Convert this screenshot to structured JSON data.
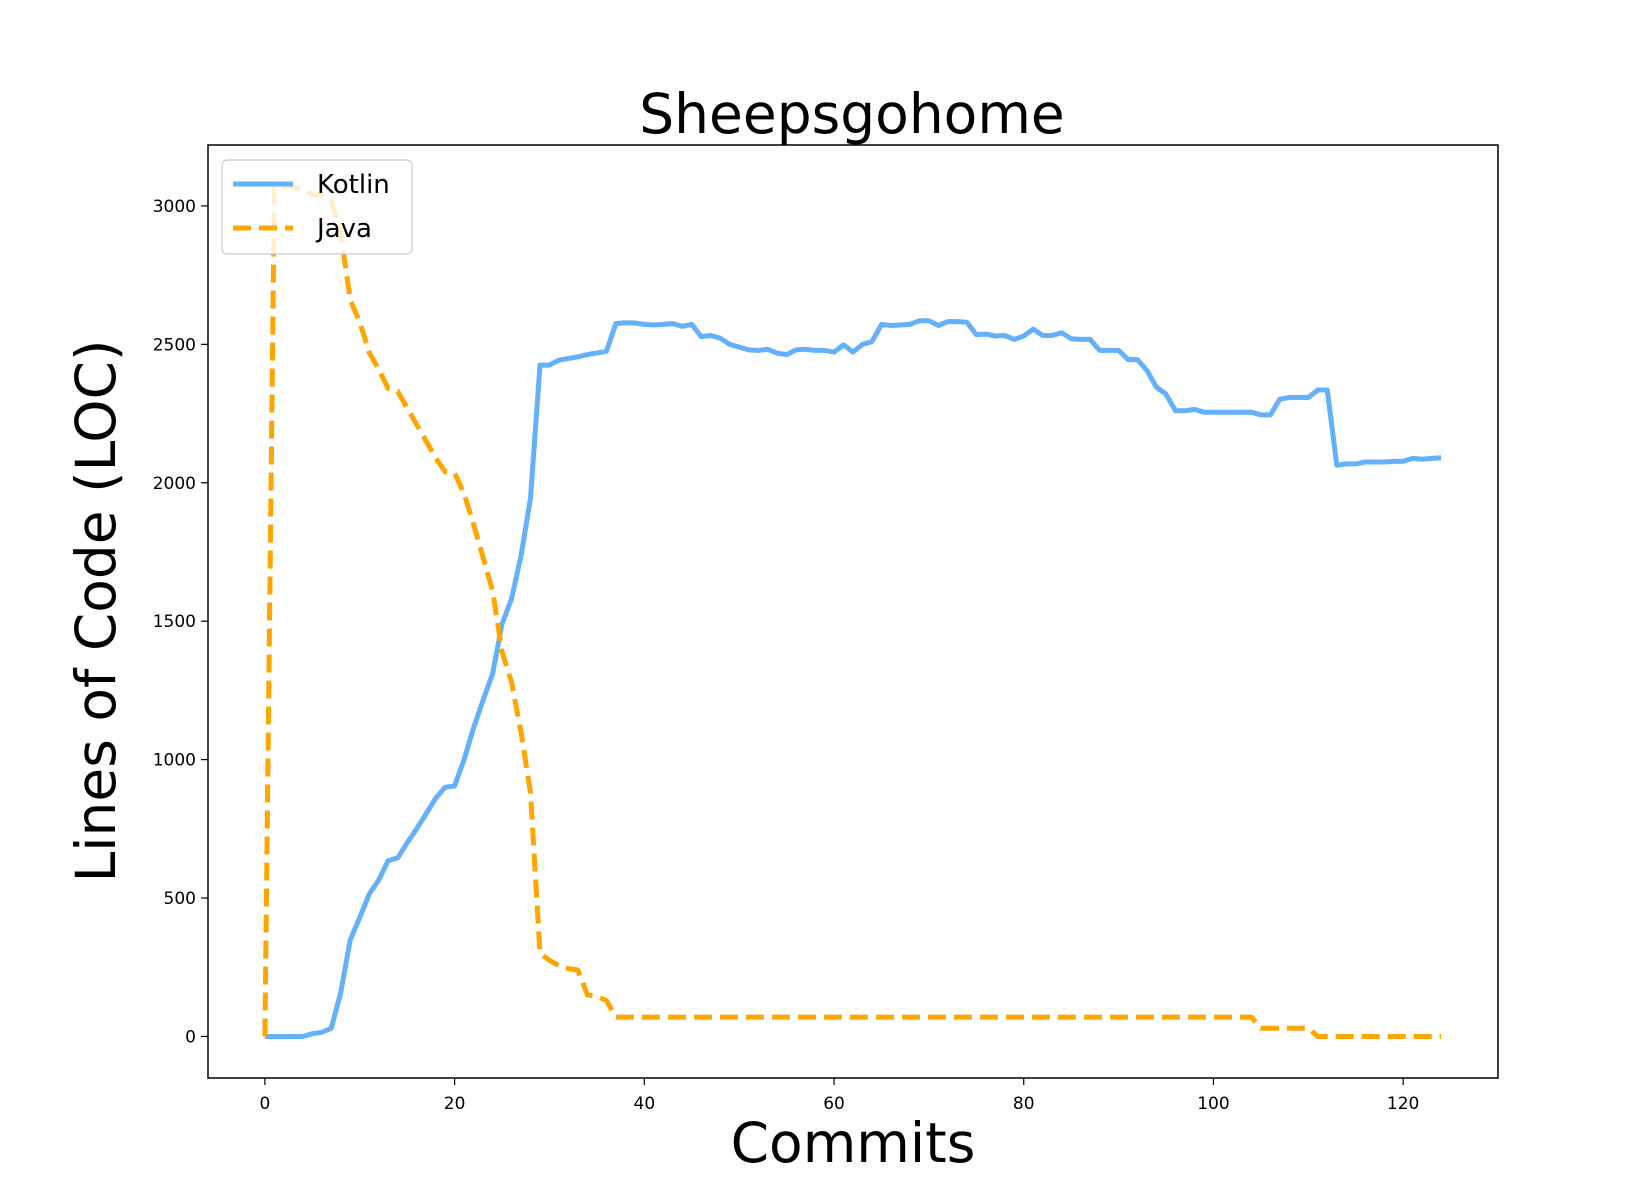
{
  "chart_data": {
    "type": "line",
    "title": "Sheepsgohome",
    "xlabel": "Commits",
    "ylabel": "Lines of Code (LOC)",
    "xlim": [
      -6,
      130
    ],
    "ylim": [
      -150,
      3220
    ],
    "xticks": [
      0,
      20,
      40,
      60,
      80,
      100,
      120
    ],
    "yticks": [
      0,
      500,
      1000,
      1500,
      2000,
      2500,
      3000
    ],
    "legend": "top-left",
    "grid": false,
    "series": [
      {
        "name": "Kotlin",
        "color": "#64b0f9",
        "style": "solid",
        "points": [
          [
            0,
            0
          ],
          [
            4,
            0
          ],
          [
            5,
            10
          ],
          [
            6,
            15
          ],
          [
            7,
            30
          ],
          [
            8,
            160
          ],
          [
            9,
            350
          ],
          [
            10,
            430
          ],
          [
            11,
            515
          ],
          [
            12,
            565
          ],
          [
            13,
            635
          ],
          [
            14,
            645
          ],
          [
            15,
            700
          ],
          [
            16,
            750
          ],
          [
            17,
            805
          ],
          [
            18,
            860
          ],
          [
            19,
            900
          ],
          [
            20,
            905
          ],
          [
            21,
            1000
          ],
          [
            22,
            1115
          ],
          [
            23,
            1215
          ],
          [
            24,
            1310
          ],
          [
            25,
            1490
          ],
          [
            26,
            1580
          ],
          [
            27,
            1735
          ],
          [
            28,
            1945
          ],
          [
            29,
            2425
          ],
          [
            30,
            2425
          ],
          [
            31,
            2443
          ],
          [
            33,
            2455
          ],
          [
            34,
            2463
          ],
          [
            36,
            2475
          ],
          [
            37,
            2575
          ],
          [
            38,
            2578
          ],
          [
            39,
            2577
          ],
          [
            40,
            2572
          ],
          [
            41,
            2570
          ],
          [
            42,
            2572
          ],
          [
            43,
            2575
          ],
          [
            44,
            2565
          ],
          [
            45,
            2572
          ],
          [
            46,
            2528
          ],
          [
            47,
            2532
          ],
          [
            48,
            2522
          ],
          [
            49,
            2500
          ],
          [
            50,
            2490
          ],
          [
            51,
            2480
          ],
          [
            52,
            2478
          ],
          [
            53,
            2482
          ],
          [
            54,
            2468
          ],
          [
            55,
            2463
          ],
          [
            56,
            2480
          ],
          [
            57,
            2482
          ],
          [
            58,
            2478
          ],
          [
            59,
            2478
          ],
          [
            60,
            2472
          ],
          [
            61,
            2498
          ],
          [
            62,
            2472
          ],
          [
            63,
            2500
          ],
          [
            64,
            2510
          ],
          [
            65,
            2572
          ],
          [
            66,
            2568
          ],
          [
            67,
            2570
          ],
          [
            68,
            2572
          ],
          [
            69,
            2585
          ],
          [
            70,
            2585
          ],
          [
            71,
            2568
          ],
          [
            72,
            2582
          ],
          [
            73,
            2582
          ],
          [
            74,
            2580
          ],
          [
            75,
            2535
          ],
          [
            76,
            2537
          ],
          [
            77,
            2530
          ],
          [
            78,
            2532
          ],
          [
            79,
            2518
          ],
          [
            80,
            2530
          ],
          [
            81,
            2555
          ],
          [
            82,
            2532
          ],
          [
            83,
            2532
          ],
          [
            84,
            2542
          ],
          [
            85,
            2520
          ],
          [
            86,
            2518
          ],
          [
            87,
            2518
          ],
          [
            88,
            2478
          ],
          [
            89,
            2478
          ],
          [
            90,
            2478
          ],
          [
            91,
            2445
          ],
          [
            92,
            2445
          ],
          [
            93,
            2405
          ],
          [
            94,
            2345
          ],
          [
            95,
            2320
          ],
          [
            96,
            2260
          ],
          [
            97,
            2260
          ],
          [
            98,
            2265
          ],
          [
            99,
            2255
          ],
          [
            100,
            2255
          ],
          [
            101,
            2255
          ],
          [
            102,
            2255
          ],
          [
            103,
            2255
          ],
          [
            104,
            2255
          ],
          [
            105,
            2245
          ],
          [
            106,
            2245
          ],
          [
            107,
            2302
          ],
          [
            108,
            2308
          ],
          [
            109,
            2308
          ],
          [
            110,
            2308
          ],
          [
            111,
            2335
          ],
          [
            112,
            2335
          ],
          [
            113,
            2063
          ],
          [
            114,
            2068
          ],
          [
            115,
            2068
          ],
          [
            116,
            2075
          ],
          [
            117,
            2075
          ],
          [
            118,
            2075
          ],
          [
            119,
            2077
          ],
          [
            120,
            2078
          ],
          [
            121,
            2088
          ],
          [
            122,
            2085
          ],
          [
            123,
            2088
          ],
          [
            124,
            2090
          ]
        ]
      },
      {
        "name": "Java",
        "color": "#ffa500",
        "style": "dashed",
        "points": [
          [
            0,
            0
          ],
          [
            1,
            3070
          ],
          [
            2,
            3070
          ],
          [
            3,
            3070
          ],
          [
            4,
            3060
          ],
          [
            5,
            3040
          ],
          [
            6,
            3040
          ],
          [
            7,
            3020
          ],
          [
            8,
            2900
          ],
          [
            9,
            2660
          ],
          [
            10,
            2580
          ],
          [
            11,
            2470
          ],
          [
            12,
            2410
          ],
          [
            13,
            2340
          ],
          [
            14,
            2330
          ],
          [
            15,
            2270
          ],
          [
            16,
            2210
          ],
          [
            17,
            2150
          ],
          [
            18,
            2090
          ],
          [
            19,
            2040
          ],
          [
            20,
            2035
          ],
          [
            21,
            1960
          ],
          [
            22,
            1850
          ],
          [
            23,
            1730
          ],
          [
            24,
            1610
          ],
          [
            25,
            1390
          ],
          [
            26,
            1280
          ],
          [
            27,
            1100
          ],
          [
            28,
            880
          ],
          [
            29,
            300
          ],
          [
            30,
            275
          ],
          [
            31,
            255
          ],
          [
            32,
            245
          ],
          [
            33,
            240
          ],
          [
            34,
            150
          ],
          [
            35,
            145
          ],
          [
            36,
            130
          ],
          [
            37,
            70
          ],
          [
            104,
            70
          ],
          [
            105,
            30
          ],
          [
            109,
            30
          ],
          [
            110,
            30
          ],
          [
            111,
            0
          ],
          [
            124,
            0
          ]
        ]
      }
    ]
  }
}
